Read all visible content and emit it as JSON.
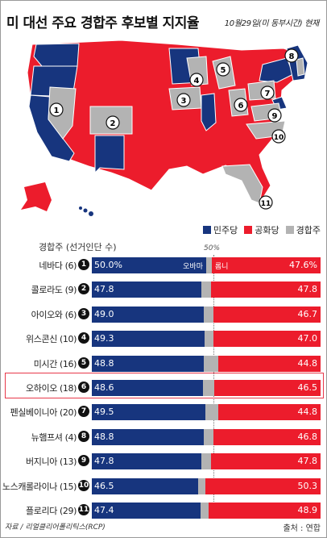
{
  "title": "미 대선 주요 경합주 후보별 지지율",
  "date_note": "10월29일(미 동부시간) 현재",
  "colors": {
    "democrat": "#17357e",
    "republican": "#ec1c2c",
    "swing": "#b3b3b3"
  },
  "legend": [
    {
      "label": "민주당",
      "color": "#17357e"
    },
    {
      "label": "공화당",
      "color": "#ec1c2c"
    },
    {
      "label": "경합주",
      "color": "#b3b3b3"
    }
  ],
  "table_header": "경합주 (선거인단 수)",
  "fifty_label": "50%",
  "obama_label": "오바마",
  "romney_label": "롬니",
  "rows": [
    {
      "num": "1",
      "state": "네바다 (6)",
      "obama": "50.0%",
      "romney": "47.6%",
      "o": 50.0,
      "r": 47.6
    },
    {
      "num": "2",
      "state": "콜로라도 (9)",
      "obama": "47.8",
      "romney": "47.8",
      "o": 47.8,
      "r": 47.8
    },
    {
      "num": "3",
      "state": "아이오와 (6)",
      "obama": "49.0",
      "romney": "46.7",
      "o": 49.0,
      "r": 46.7
    },
    {
      "num": "4",
      "state": "위스콘신 (10)",
      "obama": "49.3",
      "romney": "47.0",
      "o": 49.3,
      "r": 47.0
    },
    {
      "num": "5",
      "state": "미시간 (16)",
      "obama": "48.8",
      "romney": "44.8",
      "o": 48.8,
      "r": 44.8
    },
    {
      "num": "6",
      "state": "오하이오 (18)",
      "obama": "48.6",
      "romney": "46.5",
      "o": 48.6,
      "r": 46.5
    },
    {
      "num": "7",
      "state": "펜실베이니아 (20)",
      "obama": "49.5",
      "romney": "44.8",
      "o": 49.5,
      "r": 44.8
    },
    {
      "num": "8",
      "state": "뉴햄프셔 (4)",
      "obama": "48.8",
      "romney": "46.8",
      "o": 48.8,
      "r": 46.8
    },
    {
      "num": "9",
      "state": "버지니아 (13)",
      "obama": "47.8",
      "romney": "47.8",
      "o": 47.8,
      "r": 47.8
    },
    {
      "num": "10",
      "state": "노스캐롤라이나 (15)",
      "obama": "46.5",
      "romney": "50.3",
      "o": 46.5,
      "r": 50.3
    },
    {
      "num": "11",
      "state": "플로리다 (29)",
      "obama": "47.4",
      "romney": "48.9",
      "o": 47.4,
      "r": 48.9
    }
  ],
  "map_markers": [
    "1",
    "2",
    "3",
    "4",
    "5",
    "6",
    "7",
    "8",
    "9",
    "10",
    "11"
  ],
  "source": "자료 / 리얼클리어폴리틱스(RCP)",
  "credit": "출처 : 연합"
}
